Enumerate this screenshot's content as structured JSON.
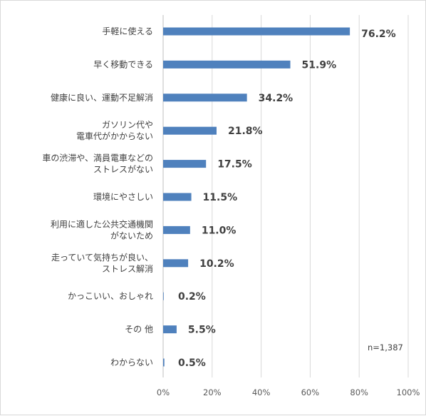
{
  "chart_data": {
    "type": "bar",
    "orientation": "horizontal",
    "categories": [
      [
        "手軽に使える"
      ],
      [
        "早く移動できる"
      ],
      [
        "健康に良い、運動不足解消"
      ],
      [
        "ガソリン代や",
        "電車代がかからない"
      ],
      [
        "車の渋滞や、満員電車などの",
        "ストレスがない"
      ],
      [
        "環境にやさしい"
      ],
      [
        "利用に適した公共交通機関",
        "がないため"
      ],
      [
        "走っていて気持ちが良い、",
        "ストレス解消"
      ],
      [
        "かっこいい、おしゃれ"
      ],
      [
        "その 他"
      ],
      [
        "わからない"
      ]
    ],
    "values": [
      76.2,
      51.9,
      34.2,
      21.8,
      17.5,
      11.5,
      11.0,
      10.2,
      0.2,
      5.5,
      0.5
    ],
    "value_labels": [
      "76.2%",
      "51.9%",
      "34.2%",
      "21.8%",
      "17.5%",
      "11.5%",
      "11.0%",
      "10.2%",
      "0.2%",
      "5.5%",
      "0.5%"
    ],
    "xlim": [
      0,
      100
    ],
    "x_ticks": [
      0,
      20,
      40,
      60,
      80,
      100
    ],
    "x_tick_labels": [
      "0%",
      "20%",
      "40%",
      "60%",
      "80%",
      "100%"
    ],
    "grid": "vertical",
    "bar_color": "#4f81bd",
    "note": "n=1,387"
  }
}
